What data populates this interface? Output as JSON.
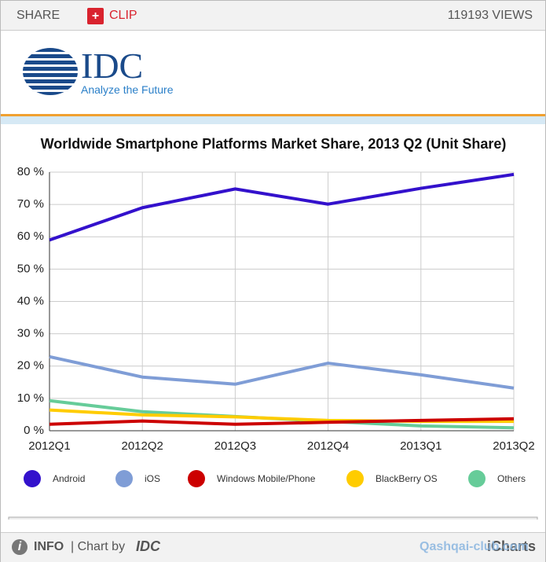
{
  "header": {
    "share": "SHARE",
    "clip": "CLIP",
    "views": "119193 VIEWS"
  },
  "logo": {
    "name": "IDC",
    "tagline": "Analyze the Future"
  },
  "chart_data": {
    "type": "line",
    "title": "Worldwide Smartphone Platforms Market Share, 2013 Q2 (Unit Share)",
    "categories": [
      "2012Q1",
      "2012Q2",
      "2012Q3",
      "2012Q4",
      "2013Q1",
      "2013Q2"
    ],
    "series": [
      {
        "name": "Android",
        "color": "#3311cc",
        "values": [
          59,
          69,
          74.8,
          70.1,
          75,
          79.3
        ]
      },
      {
        "name": "iOS",
        "color": "#7f9dd6",
        "values": [
          22.9,
          16.6,
          14.4,
          20.9,
          17.3,
          13.2
        ]
      },
      {
        "name": "Windows Mobile/Phone",
        "color": "#cc0000",
        "values": [
          2.0,
          3.0,
          2.0,
          2.6,
          3.2,
          3.7
        ]
      },
      {
        "name": "BlackBerry OS",
        "color": "#ffcc00",
        "values": [
          6.4,
          4.9,
          4.3,
          3.2,
          2.9,
          2.9
        ]
      },
      {
        "name": "Others",
        "color": "#66cc99",
        "values": [
          9.3,
          5.9,
          4.4,
          2.9,
          1.5,
          0.9
        ]
      }
    ],
    "ylim": [
      0,
      80
    ],
    "yticks": [
      {
        "value": 0,
        "label": "0 %"
      },
      {
        "value": 10,
        "label": "10 %"
      },
      {
        "value": 20,
        "label": "20 %"
      },
      {
        "value": 30,
        "label": "30 %"
      },
      {
        "value": 40,
        "label": "40 %"
      },
      {
        "value": 50,
        "label": "50 %"
      },
      {
        "value": 60,
        "label": "60 %"
      },
      {
        "value": 70,
        "label": "70 %"
      },
      {
        "value": 80,
        "label": "80 %"
      }
    ],
    "grid": true
  },
  "footer": {
    "info": "INFO",
    "chart_by": "| Chart by",
    "brand": "IDC",
    "credit": "iCharts",
    "watermark": "Qashqai-club.com"
  }
}
